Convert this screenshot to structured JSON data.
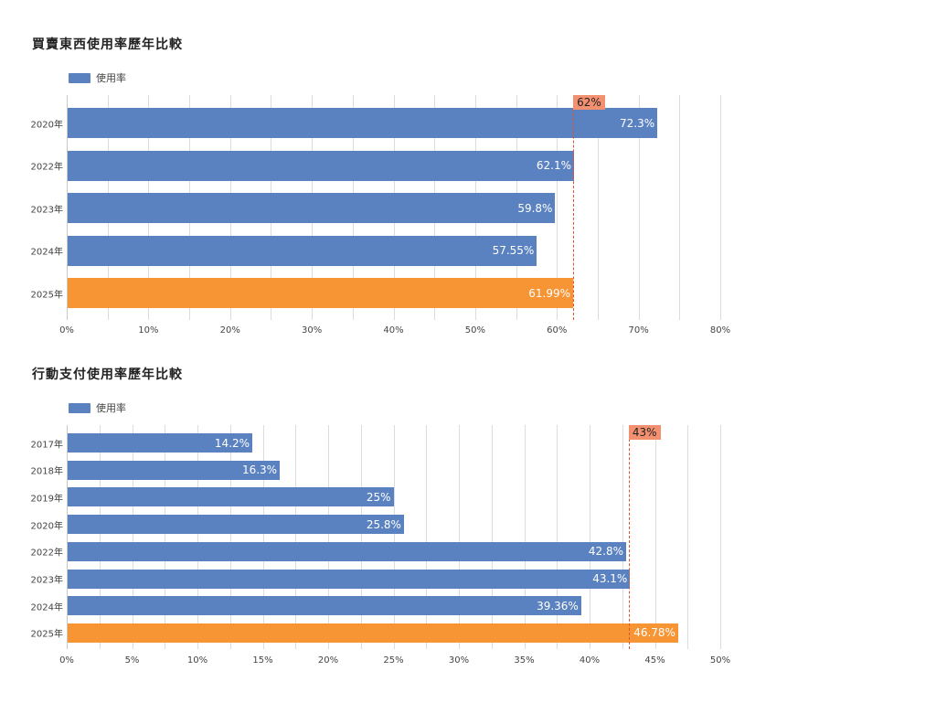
{
  "colors": {
    "bar": "#5b82c0",
    "highlight": "#f79433",
    "reference_line": "#e0522e",
    "reference_badge": "#f29070",
    "grid": "#dcdcdc"
  },
  "chart_data": [
    {
      "type": "bar",
      "orientation": "horizontal",
      "title": "買賣東西使用率歷年比較",
      "legend": [
        "使用率"
      ],
      "categories": [
        "2020年",
        "2022年",
        "2023年",
        "2024年",
        "2025年"
      ],
      "values": [
        72.3,
        62.1,
        59.8,
        57.55,
        61.99
      ],
      "value_labels": [
        "72.3%",
        "62.1%",
        "59.8%",
        "57.55%",
        "61.99%"
      ],
      "highlight_index": 4,
      "xlim": [
        0,
        80
      ],
      "xticks": [
        "0%",
        "10%",
        "20%",
        "30%",
        "40%",
        "50%",
        "60%",
        "70%",
        "80%"
      ],
      "minor_grid_step": 5,
      "reference_line": {
        "value": 62,
        "label": "62%"
      },
      "grid": true,
      "legend_position": "top-left"
    },
    {
      "type": "bar",
      "orientation": "horizontal",
      "title": "行動支付使用率歷年比較",
      "legend": [
        "使用率"
      ],
      "categories": [
        "2017年",
        "2018年",
        "2019年",
        "2020年",
        "2022年",
        "2023年",
        "2024年",
        "2025年"
      ],
      "values": [
        14.2,
        16.3,
        25,
        25.8,
        42.8,
        43.1,
        39.36,
        46.78
      ],
      "value_labels": [
        "14.2%",
        "16.3%",
        "25%",
        "25.8%",
        "42.8%",
        "43.1%",
        "39.36%",
        "46.78%"
      ],
      "highlight_index": 7,
      "xlim": [
        0,
        50
      ],
      "xticks": [
        "0%",
        "5%",
        "10%",
        "15%",
        "20%",
        "25%",
        "30%",
        "35%",
        "40%",
        "45%",
        "50%"
      ],
      "minor_grid_step": 2.5,
      "reference_line": {
        "value": 43,
        "label": "43%"
      },
      "grid": true,
      "legend_position": "top-left"
    }
  ]
}
